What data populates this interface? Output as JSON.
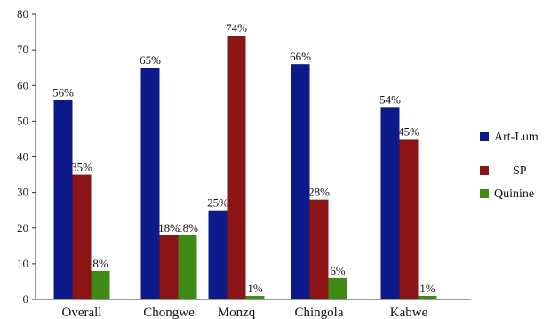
{
  "chart_data": {
    "type": "bar",
    "categories": [
      "Overall",
      "Chongwe",
      "Monzq",
      "Chingola",
      "Kabwe"
    ],
    "series": [
      {
        "name": "Art-Lum",
        "color": "#0d1a8a",
        "values": [
          56,
          65,
          25,
          66,
          54
        ],
        "labels": [
          "56%",
          "65%",
          "25%",
          "66%",
          "54%"
        ]
      },
      {
        "name": "SP",
        "color": "#8b1414",
        "values": [
          35,
          18,
          74,
          28,
          45
        ],
        "labels": [
          "35%",
          "18%",
          "74%",
          "28%",
          "45%"
        ]
      },
      {
        "name": "Quinine",
        "color": "#3f8a14",
        "values": [
          8,
          18,
          1,
          6,
          1
        ],
        "labels": [
          "8%",
          "18%",
          "1%",
          "6%",
          "1%"
        ]
      }
    ],
    "ylim": [
      0,
      80
    ],
    "yticks": [
      "0",
      "10",
      "20",
      "30",
      "40",
      "50",
      "60",
      "70",
      "80"
    ],
    "legend_position": "right",
    "grid": false
  }
}
